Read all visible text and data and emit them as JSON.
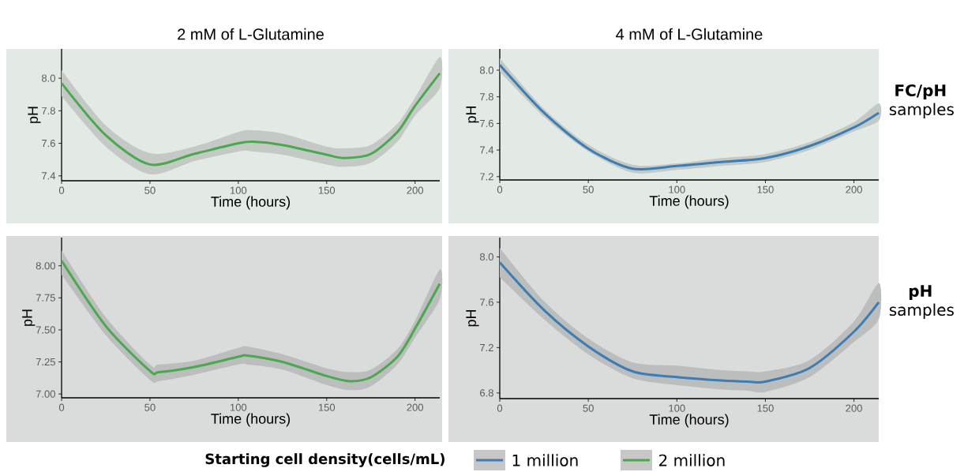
{
  "chart_data": [
    {
      "type": "line",
      "title": "2 mM of L-Glutamine",
      "xlabel": "Time (hours)",
      "ylabel": "pH",
      "x": [
        0,
        25,
        50,
        75,
        100,
        108,
        125,
        150,
        160,
        175,
        190,
        200,
        214
      ],
      "xlim": [
        0,
        214
      ],
      "ylim": [
        7.37,
        8.18
      ],
      "xticks": [
        0,
        50,
        100,
        150,
        200
      ],
      "yticks": [
        7.4,
        7.6,
        7.8,
        {
          "value": 8.0,
          "label": "8.0"
        }
      ],
      "series": [
        {
          "color": "#4aa84e",
          "values": [
            7.97,
            7.65,
            7.47,
            7.535,
            7.6,
            7.61,
            7.59,
            7.53,
            7.51,
            7.535,
            7.67,
            7.83,
            8.03
          ],
          "lower": [
            7.89,
            7.58,
            7.41,
            7.49,
            7.55,
            7.55,
            7.53,
            7.47,
            7.455,
            7.48,
            7.61,
            7.77,
            7.94
          ],
          "upper": [
            8.05,
            7.71,
            7.54,
            7.58,
            7.67,
            7.68,
            7.66,
            7.58,
            7.57,
            7.59,
            7.72,
            7.88,
            8.13
          ]
        }
      ]
    },
    {
      "type": "line",
      "title": "4 mM of L-Glutamine",
      "xlabel": "Time (hours)",
      "ylabel": "pH",
      "x": [
        0,
        25,
        50,
        75,
        100,
        125,
        150,
        175,
        200,
        214
      ],
      "xlim": [
        0,
        214
      ],
      "ylim": [
        7.175,
        8.16
      ],
      "xticks": [
        0,
        50,
        100,
        150,
        200
      ],
      "yticks": [
        7.2,
        7.4,
        7.6,
        7.8,
        {
          "value": 8.0,
          "label": "8.0"
        }
      ],
      "annotations": [
        "**FC/pH** samples"
      ],
      "series": [
        {
          "color": "#3b7db4",
          "values": [
            8.04,
            7.68,
            7.41,
            7.26,
            7.28,
            7.31,
            7.34,
            7.43,
            7.57,
            7.68
          ],
          "lower": [
            7.99,
            7.65,
            7.39,
            7.23,
            7.25,
            7.28,
            7.31,
            7.4,
            7.54,
            7.62
          ],
          "upper": [
            8.09,
            7.71,
            7.44,
            7.29,
            7.3,
            7.34,
            7.37,
            7.46,
            7.61,
            7.75
          ]
        }
      ]
    },
    {
      "type": "line",
      "xlabel": "Time (hours)",
      "ylabel": "pH",
      "x": [
        0,
        25,
        50,
        55,
        75,
        100,
        105,
        125,
        150,
        163,
        175,
        190,
        200,
        214
      ],
      "xlim": [
        0,
        214
      ],
      "ylim": [
        6.97,
        8.22
      ],
      "xticks": [
        0,
        50,
        100,
        150,
        200
      ],
      "yticks": [
        {
          "value": 7.0,
          "label": "7.00"
        },
        7.25,
        {
          "value": 7.5,
          "label": "7.50"
        },
        7.75,
        {
          "value": 8.0,
          "label": "8.00"
        }
      ],
      "legend": "bottom",
      "series": [
        {
          "name": "2 million",
          "color": "#4aa84e",
          "values": [
            8.04,
            7.53,
            7.18,
            7.17,
            7.21,
            7.29,
            7.3,
            7.25,
            7.14,
            7.1,
            7.13,
            7.29,
            7.51,
            7.86
          ],
          "lower": [
            7.93,
            7.46,
            7.11,
            7.1,
            7.15,
            7.23,
            7.23,
            7.19,
            7.07,
            7.03,
            7.06,
            7.23,
            7.44,
            7.74
          ],
          "upper": [
            8.12,
            7.6,
            7.23,
            7.23,
            7.26,
            7.36,
            7.37,
            7.31,
            7.2,
            7.17,
            7.19,
            7.35,
            7.57,
            7.97
          ]
        }
      ]
    },
    {
      "type": "line",
      "xlabel": "Time (hours)",
      "ylabel": "pH",
      "x": [
        0,
        25,
        50,
        75,
        100,
        125,
        140,
        150,
        175,
        200,
        214
      ],
      "xlim": [
        0,
        214
      ],
      "ylim": [
        6.75,
        8.17
      ],
      "xticks": [
        0,
        50,
        100,
        150,
        200
      ],
      "yticks": [
        6.8,
        7.2,
        7.6,
        {
          "value": 8.0,
          "label": "8.0"
        }
      ],
      "annotations": [
        "**pH** samples"
      ],
      "legend": "bottom",
      "legend_title": "Starting cell density(cells/mL)",
      "series": [
        {
          "name": "1 million",
          "color": "#3b7db4",
          "values": [
            7.95,
            7.53,
            7.21,
            6.99,
            6.94,
            6.91,
            6.9,
            6.9,
            7.02,
            7.34,
            7.6
          ],
          "lower": [
            7.82,
            7.45,
            7.14,
            6.93,
            6.87,
            6.83,
            6.82,
            6.81,
            6.94,
            7.25,
            7.45
          ],
          "upper": [
            8.08,
            7.61,
            7.28,
            7.07,
            7.04,
            7.0,
            6.99,
            6.99,
            7.09,
            7.43,
            7.77
          ]
        }
      ]
    }
  ]
}
